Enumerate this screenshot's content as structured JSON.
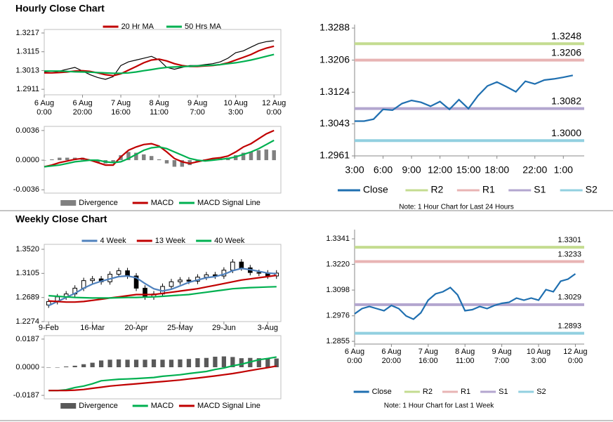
{
  "section_titles": [
    "Hourly Close Chart",
    "Weekly Close Chart"
  ],
  "chart_data": [
    {
      "type": "line",
      "xlim": [
        0,
        30.9
      ],
      "xticks": [
        {
          "value": 0,
          "label": [
            "6 Aug",
            "0:00"
          ]
        },
        {
          "value": 5,
          "label": [
            "6 Aug",
            "20:00"
          ]
        },
        {
          "value": 10,
          "label": [
            "7 Aug",
            "16:00"
          ]
        },
        {
          "value": 15,
          "label": [
            "8 Aug",
            "11:00"
          ]
        },
        {
          "value": 20,
          "label": [
            "9 Aug",
            "7:00"
          ]
        },
        {
          "value": 25,
          "label": [
            "10 Aug",
            "3:00"
          ]
        },
        {
          "value": 30,
          "label": [
            "12 Aug",
            "0:00"
          ]
        }
      ],
      "ylim": [
        1.2881,
        1.3236
      ],
      "yticks": [
        1.2911,
        1.3013,
        1.3115,
        1.3217
      ],
      "series": [
        {
          "color": "#000000",
          "values": [
            1.3005,
            1.3,
            1.301,
            1.302,
            1.303,
            1.301,
            1.299,
            1.2975,
            1.2965,
            1.298,
            1.304,
            1.306,
            1.307,
            1.308,
            1.309,
            1.307,
            1.303,
            1.302,
            1.303,
            1.304,
            1.304,
            1.3045,
            1.305,
            1.306,
            1.308,
            1.311,
            1.312,
            1.314,
            1.316,
            1.317,
            1.3175
          ]
        },
        {
          "name": "20 Hr MA",
          "color": "#c00000",
          "values": [
            1.3,
            1.3,
            1.3002,
            1.3005,
            1.301,
            1.3012,
            1.3008,
            1.3,
            1.299,
            1.2985,
            1.2995,
            1.3015,
            1.3035,
            1.3055,
            1.307,
            1.3075,
            1.3065,
            1.305,
            1.304,
            1.3035,
            1.3035,
            1.3038,
            1.304,
            1.3045,
            1.3055,
            1.307,
            1.3085,
            1.31,
            1.312,
            1.3135,
            1.3145
          ]
        },
        {
          "name": "50 Hrs MA",
          "color": "#00b050",
          "values": [
            1.301,
            1.301,
            1.301,
            1.3008,
            1.3006,
            1.3005,
            1.3004,
            1.3002,
            1.3,
            1.2998,
            1.2998,
            1.3,
            1.3005,
            1.3012,
            1.3018,
            1.3025,
            1.303,
            1.3032,
            1.3034,
            1.3036,
            1.3038,
            1.304,
            1.3042,
            1.3045,
            1.305,
            1.3055,
            1.3062,
            1.307,
            1.308,
            1.309,
            1.31
          ]
        }
      ]
    },
    {
      "type": "macd",
      "xlim": [
        0,
        30.9
      ],
      "ylim": [
        -0.004,
        0.0041
      ],
      "yticks": [
        {
          "value": -0.0036,
          "label": "-0.0036"
        },
        {
          "value": 0,
          "label": "0.0000"
        },
        {
          "value": 0.0036,
          "label": "0.0036"
        }
      ],
      "series": [
        {
          "name": "Divergence",
          "type": "bar",
          "color": "#808080",
          "values": [
            0,
            0.0001,
            0.0003,
            0.0003,
            0.0003,
            0.0003,
            0,
            -0.0003,
            -0.0004,
            -0.0003,
            0.0006,
            0.001,
            0.0009,
            0.0007,
            0.0005,
            0.0001,
            -0.0004,
            -0.0008,
            -0.0008,
            -0.0006,
            -0.0002,
            0.0001,
            0.0002,
            0.0002,
            0.0003,
            0.0006,
            0.0009,
            0.001,
            0.0012,
            0.0013,
            0.0012
          ]
        },
        {
          "name": "MACD",
          "color": "#c00000",
          "values": [
            -0.0008,
            -0.0006,
            -0.0003,
            -0.0001,
            0.0001,
            0.0002,
            0,
            -0.0003,
            -0.0006,
            -0.0006,
            0.0004,
            0.0012,
            0.0016,
            0.0019,
            0.002,
            0.0017,
            0.001,
            0.0002,
            -0.0002,
            -0.0004,
            -0.0002,
            0,
            0.0002,
            0.0003,
            0.0005,
            0.001,
            0.0016,
            0.002,
            0.0026,
            0.0032,
            0.0036
          ]
        },
        {
          "name": "MACD Signal Line",
          "color": "#00b050",
          "values": [
            -0.0008,
            -0.0007,
            -0.0006,
            -0.0004,
            -0.0002,
            -0.0001,
            0,
            0,
            -0.0002,
            -0.0003,
            -0.0002,
            0.0002,
            0.0007,
            0.0012,
            0.0015,
            0.0016,
            0.0014,
            0.001,
            0.0006,
            0.0002,
            0,
            -0.0001,
            0,
            0.0001,
            0.0002,
            0.0004,
            0.0007,
            0.001,
            0.0014,
            0.0019,
            0.0024
          ]
        }
      ]
    },
    {
      "type": "levels",
      "xlim": [
        0,
        24.2
      ],
      "xticks": [
        {
          "value": 0,
          "label": "3:00"
        },
        {
          "value": 3,
          "label": "6:00"
        },
        {
          "value": 6,
          "label": "9:00"
        },
        {
          "value": 9,
          "label": "12:00"
        },
        {
          "value": 12,
          "label": "15:00"
        },
        {
          "value": 15,
          "label": "18:00"
        },
        {
          "value": 19,
          "label": "22:00"
        },
        {
          "value": 22,
          "label": "1:00"
        }
      ],
      "ylim": [
        1.2961,
        1.3288
      ],
      "yticks": [
        1.2961,
        1.3043,
        1.3124,
        1.3206,
        1.3288
      ],
      "series": [
        {
          "name": "Close",
          "color": "#1f6fb0",
          "values": [
            1.305,
            1.305,
            1.3055,
            1.308,
            1.3078,
            1.3095,
            1.3103,
            1.3098,
            1.3088,
            1.31,
            1.308,
            1.3105,
            1.3082,
            1.3115,
            1.314,
            1.315,
            1.3138,
            1.3125,
            1.3152,
            1.3145,
            1.3155,
            1.3158,
            1.3162,
            1.3167
          ]
        }
      ],
      "levels": [
        {
          "name": "R2",
          "color": "#c4dc90",
          "value": 1.3248,
          "value_label": "1.3248"
        },
        {
          "name": "R1",
          "color": "#e8b4b4",
          "value": 1.3206,
          "value_label": "1.3206"
        },
        {
          "name": "S1",
          "color": "#b3a6cf",
          "value": 1.3082,
          "value_label": "1.3082"
        },
        {
          "name": "S2",
          "color": "#92d0e0",
          "value": 1.3,
          "value_label": "1.3000"
        }
      ],
      "note": "Note: 1 Hour Chart for Last 24 Hours"
    },
    {
      "type": "candlestick",
      "xlim": [
        -0.5,
        26.5
      ],
      "xticks": [
        {
          "value": 0,
          "label": "9-Feb"
        },
        {
          "value": 5,
          "label": "16-Mar"
        },
        {
          "value": 10,
          "label": "20-Apr"
        },
        {
          "value": 15,
          "label": "25-May"
        },
        {
          "value": 20,
          "label": "29-Jun"
        },
        {
          "value": 25,
          "label": "3-Aug"
        }
      ],
      "ylim": [
        1.2274,
        1.3605
      ],
      "yticks": [
        1.2274,
        1.2689,
        1.3105,
        {
          "value": 1.352,
          "label": "1.3520"
        }
      ],
      "ohlc": {
        "open": [
          1.256,
          1.262,
          1.27,
          1.275,
          1.285,
          1.298,
          1.301,
          1.296,
          1.309,
          1.315,
          1.306,
          1.285,
          1.27,
          1.275,
          1.288,
          1.296,
          1.299,
          1.297,
          1.304,
          1.308,
          1.306,
          1.316,
          1.33,
          1.32,
          1.312,
          1.311,
          1.306
        ],
        "high": [
          1.267,
          1.275,
          1.28,
          1.29,
          1.303,
          1.306,
          1.306,
          1.314,
          1.32,
          1.32,
          1.311,
          1.29,
          1.28,
          1.293,
          1.301,
          1.304,
          1.304,
          1.309,
          1.313,
          1.313,
          1.321,
          1.335,
          1.335,
          1.325,
          1.317,
          1.316,
          1.316
        ],
        "low": [
          1.251,
          1.257,
          1.265,
          1.27,
          1.28,
          1.293,
          1.291,
          1.291,
          1.304,
          1.301,
          1.28,
          1.265,
          1.265,
          1.27,
          1.283,
          1.291,
          1.292,
          1.292,
          1.299,
          1.301,
          1.301,
          1.311,
          1.315,
          1.307,
          1.306,
          1.301,
          1.301
        ],
        "close": [
          1.262,
          1.27,
          1.275,
          1.285,
          1.298,
          1.301,
          1.296,
          1.309,
          1.315,
          1.306,
          1.285,
          1.27,
          1.275,
          1.288,
          1.296,
          1.299,
          1.297,
          1.304,
          1.308,
          1.306,
          1.316,
          1.33,
          1.32,
          1.312,
          1.311,
          1.306,
          1.311
        ]
      },
      "series": [
        {
          "name": "4 Week",
          "color": "#4f81bd",
          "values": [
            1.255,
            1.262,
            1.269,
            1.276,
            1.285,
            1.292,
            1.297,
            1.301,
            1.305,
            1.306,
            1.303,
            1.293,
            1.284,
            1.28,
            1.283,
            1.289,
            1.295,
            1.299,
            1.303,
            1.305,
            1.309,
            1.315,
            1.319,
            1.317,
            1.314,
            1.311,
            1.31
          ]
        },
        {
          "name": "13 Week",
          "color": "#c00000",
          "values": [
            1.263,
            1.262,
            1.261,
            1.261,
            1.262,
            1.264,
            1.266,
            1.268,
            1.27,
            1.272,
            1.274,
            1.274,
            1.274,
            1.276,
            1.278,
            1.28,
            1.282,
            1.284,
            1.287,
            1.29,
            1.293,
            1.296,
            1.299,
            1.301,
            1.303,
            1.305,
            1.307
          ]
        },
        {
          "name": "40 Week",
          "color": "#00b050",
          "values": [
            1.272,
            1.271,
            1.27,
            1.269,
            1.2685,
            1.268,
            1.268,
            1.268,
            1.2685,
            1.269,
            1.269,
            1.2695,
            1.27,
            1.271,
            1.272,
            1.273,
            1.274,
            1.276,
            1.278,
            1.28,
            1.282,
            1.284,
            1.285,
            1.286,
            1.2865,
            1.287,
            1.2875
          ]
        }
      ]
    },
    {
      "type": "macd",
      "xlim": [
        -0.5,
        26.5
      ],
      "ylim": [
        -0.021,
        0.021
      ],
      "yticks": [
        {
          "value": -0.0187,
          "label": "-0.0187"
        },
        {
          "value": 0,
          "label": "0.0000"
        },
        {
          "value": 0.0187,
          "label": "0.0187"
        }
      ],
      "series": [
        {
          "name": "Divergence",
          "type": "bar",
          "color": "#595959",
          "values": [
            0,
            -0.0002,
            0.0005,
            0.001,
            0.002,
            0.003,
            0.0045,
            0.005,
            0.0052,
            0.005,
            0.005,
            0.005,
            0.0052,
            0.005,
            0.005,
            0.0052,
            0.0055,
            0.006,
            0.0062,
            0.007,
            0.0072,
            0.0068,
            0.006,
            0.0062,
            0.006,
            0.0058,
            0.0058
          ]
        },
        {
          "name": "MACD",
          "color": "#00b050",
          "values": [
            -0.0155,
            -0.0155,
            -0.015,
            -0.0135,
            -0.0125,
            -0.011,
            -0.009,
            -0.0085,
            -0.008,
            -0.0078,
            -0.0075,
            -0.0072,
            -0.0068,
            -0.006,
            -0.0055,
            -0.005,
            -0.0042,
            -0.0035,
            -0.0028,
            -0.0015,
            -0.0005,
            0.001,
            0.002,
            0.0035,
            0.005,
            0.0058,
            0.0068
          ]
        },
        {
          "name": "MACD Signal Line",
          "color": "#c00000",
          "values": [
            -0.0155,
            -0.0155,
            -0.0155,
            -0.0152,
            -0.0148,
            -0.014,
            -0.0133,
            -0.0125,
            -0.012,
            -0.0115,
            -0.011,
            -0.0105,
            -0.01,
            -0.0095,
            -0.009,
            -0.0085,
            -0.0078,
            -0.0072,
            -0.0065,
            -0.0058,
            -0.005,
            -0.0042,
            -0.0032,
            -0.0022,
            -0.0012,
            -0.0003,
            0.0008
          ]
        }
      ]
    },
    {
      "type": "levels",
      "xlim": [
        0,
        31.2
      ],
      "xticks": [
        {
          "value": 0,
          "label": [
            "6 Aug",
            "0:00"
          ]
        },
        {
          "value": 5,
          "label": [
            "6 Aug",
            "20:00"
          ]
        },
        {
          "value": 10,
          "label": [
            "7 Aug",
            "16:00"
          ]
        },
        {
          "value": 15,
          "label": [
            "8 Aug",
            "11:00"
          ]
        },
        {
          "value": 20,
          "label": [
            "9 Aug",
            "7:00"
          ]
        },
        {
          "value": 25,
          "label": [
            "10 Aug",
            "3:00"
          ]
        },
        {
          "value": 30,
          "label": [
            "12 Aug",
            "0:00"
          ]
        }
      ],
      "ylim": [
        1.2842,
        1.3368
      ],
      "yticks": [
        1.2855,
        1.2976,
        1.3098,
        {
          "value": 1.322,
          "label": "1.3220"
        },
        1.3341
      ],
      "series": [
        {
          "name": "Close",
          "color": "#1f6fb0",
          "values": [
            1.2985,
            1.301,
            1.302,
            1.301,
            1.3,
            1.3025,
            1.301,
            1.2975,
            1.296,
            1.299,
            1.305,
            1.308,
            1.309,
            1.311,
            1.3075,
            1.3,
            1.3005,
            1.302,
            1.301,
            1.3025,
            1.3035,
            1.304,
            1.306,
            1.305,
            1.306,
            1.305,
            1.31,
            1.309,
            1.314,
            1.315,
            1.3175
          ]
        }
      ],
      "levels": [
        {
          "name": "R2",
          "color": "#c4dc90",
          "value": 1.3301,
          "value_label": "1.3301"
        },
        {
          "name": "R1",
          "color": "#e8b4b4",
          "value": 1.3233,
          "value_label": "1.3233"
        },
        {
          "name": "S1",
          "color": "#b3a6cf",
          "value": 1.3029,
          "value_label": "1.3029"
        },
        {
          "name": "S2",
          "color": "#92d0e0",
          "value": 1.2893,
          "value_label": "1.2893"
        }
      ],
      "note": "Note: 1 Hour Chart for  Last 1 Week"
    }
  ]
}
